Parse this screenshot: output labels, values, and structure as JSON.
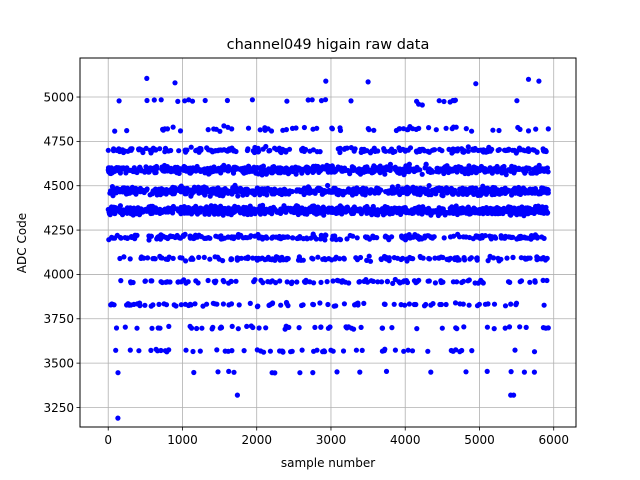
{
  "chart_data": {
    "type": "scatter",
    "title": "channel049 higain raw data",
    "xlabel": "sample number",
    "ylabel": "ADC Code",
    "xlim": [
      -380,
      6300
    ],
    "ylim": [
      3140,
      5220
    ],
    "x_ticks": [
      0,
      1000,
      2000,
      3000,
      4000,
      5000,
      6000
    ],
    "x_tick_labels": [
      "0",
      "1000",
      "2000",
      "3000",
      "4000",
      "5000",
      "6000"
    ],
    "y_ticks": [
      3250,
      3500,
      3750,
      4000,
      4250,
      4500,
      4750,
      5000
    ],
    "y_tick_labels": [
      "3250",
      "3500",
      "3750",
      "4000",
      "4250",
      "4500",
      "4750",
      "5000"
    ],
    "grid": true,
    "legend": "none",
    "marker_color": "#0000ff",
    "series": [
      {
        "x_range": [
          0,
          5930
        ],
        "bands": [
          {
            "y": 4360,
            "spread": 22,
            "count": 900
          },
          {
            "y": 4470,
            "spread": 22,
            "count": 700
          },
          {
            "y": 4590,
            "spread": 22,
            "count": 600
          },
          {
            "y": 4210,
            "spread": 14,
            "count": 260
          },
          {
            "y": 4700,
            "spread": 14,
            "count": 230
          },
          {
            "y": 4090,
            "spread": 12,
            "count": 160
          },
          {
            "y": 3960,
            "spread": 10,
            "count": 110
          },
          {
            "y": 3830,
            "spread": 10,
            "count": 90
          },
          {
            "y": 4820,
            "spread": 14,
            "count": 60
          },
          {
            "y": 3700,
            "spread": 8,
            "count": 55
          },
          {
            "y": 3570,
            "spread": 8,
            "count": 55
          },
          {
            "y": 4980,
            "spread": 8,
            "count": 25
          },
          {
            "y": 3450,
            "spread": 6,
            "count": 18
          }
        ],
        "outliers": [
          {
            "x": 130,
            "y": 3190
          },
          {
            "x": 520,
            "y": 5105
          },
          {
            "x": 900,
            "y": 5080
          },
          {
            "x": 2930,
            "y": 5090
          },
          {
            "x": 3500,
            "y": 5085
          },
          {
            "x": 4950,
            "y": 5075
          },
          {
            "x": 5660,
            "y": 5100
          },
          {
            "x": 5800,
            "y": 5090
          },
          {
            "x": 1740,
            "y": 3320
          },
          {
            "x": 5420,
            "y": 3320
          },
          {
            "x": 5460,
            "y": 3320
          },
          {
            "x": 4180,
            "y": 4960
          },
          {
            "x": 4230,
            "y": 4955
          }
        ]
      }
    ]
  }
}
